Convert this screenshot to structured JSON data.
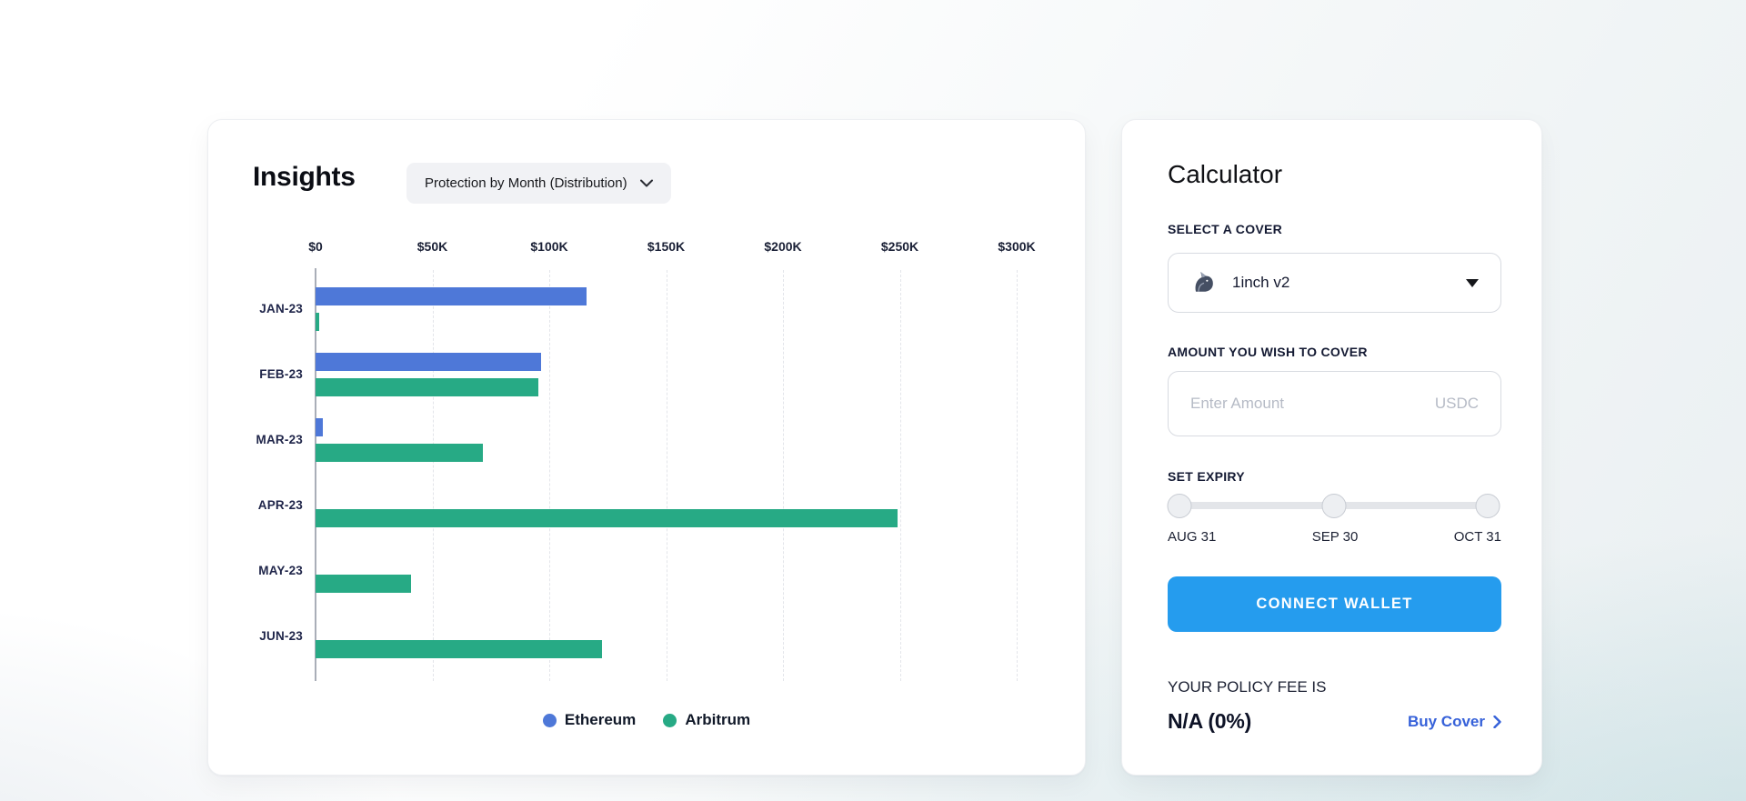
{
  "insights": {
    "title": "Insights",
    "filter": {
      "selected": "Protection by Month (Distribution)"
    }
  },
  "chart_data": {
    "type": "bar",
    "orientation": "horizontal",
    "title": "Protection by Month (Distribution)",
    "categories": [
      "JAN-23",
      "FEB-23",
      "MAR-23",
      "APR-23",
      "MAY-23",
      "JUN-23"
    ],
    "series": [
      {
        "name": "Ethereum",
        "color": "#4E78D8",
        "values": [
          116000,
          96500,
          3000,
          0,
          0,
          0
        ]
      },
      {
        "name": "Arbitrum",
        "color": "#27AA85",
        "values": [
          1500,
          95500,
          71500,
          249000,
          41000,
          122500
        ]
      }
    ],
    "x_ticks": [
      "$0",
      "$50K",
      "$100K",
      "$150K",
      "$200K",
      "$250K",
      "$300K"
    ],
    "xlim": [
      0,
      300000
    ],
    "grid": "dashed-vertical",
    "legend_position": "bottom"
  },
  "calculator": {
    "title": "Calculator",
    "cover": {
      "label": "SELECT A COVER",
      "selected": "1inch v2",
      "icon": "1inch-logo"
    },
    "amount": {
      "label": "AMOUNT YOU WISH TO COVER",
      "placeholder": "Enter Amount",
      "currency": "USDC"
    },
    "expiry": {
      "label": "SET EXPIRY",
      "options": [
        "AUG 31",
        "SEP 30",
        "OCT 31"
      ]
    },
    "connect_button": "CONNECT WALLET",
    "policy_fee": {
      "label": "YOUR POLICY FEE IS",
      "value": "N/A (0%)"
    },
    "buy_cover": "Buy Cover"
  },
  "theme": {
    "ethereum": "#4E78D8",
    "arbitrum": "#27AA85",
    "button_blue": "#259CEE",
    "link_blue": "#3661D9"
  }
}
